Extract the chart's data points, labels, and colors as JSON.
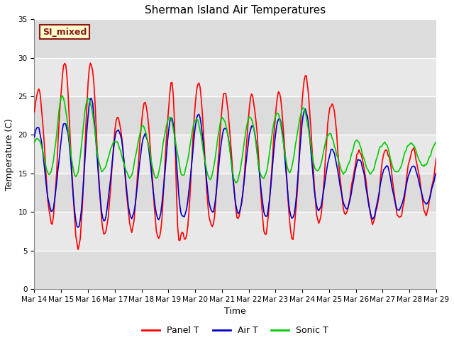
{
  "title": "Sherman Island Air Temperatures",
  "xlabel": "Time",
  "ylabel": "Temperature (C)",
  "ylim": [
    0,
    35
  ],
  "yticks": [
    0,
    5,
    10,
    15,
    20,
    25,
    30,
    35
  ],
  "xtick_labels": [
    "Mar 14",
    "Mar 15",
    "Mar 16",
    "Mar 17",
    "Mar 18",
    "Mar 19",
    "Mar 20",
    "Mar 21",
    "Mar 22",
    "Mar 23",
    "Mar 24",
    "Mar 25",
    "Mar 26",
    "Mar 27",
    "Mar 28",
    "Mar 29"
  ],
  "legend_labels": [
    "Panel T",
    "Air T",
    "Sonic T"
  ],
  "label_box_text": "SI_mixed",
  "label_box_facecolor": "#ffffcc",
  "label_box_edgecolor": "#8B1A1A",
  "label_box_textcolor": "#8B1A1A",
  "plot_bg_color": "#e8e8e8",
  "band_color_light": "#dcdcdc",
  "band_color_dark": "#e8e8e8",
  "grid_color": "white",
  "panel_color": "#ff0000",
  "air_color": "#0000cc",
  "sonic_color": "#00cc00",
  "line_width": 1.2,
  "title_fontsize": 11,
  "axis_fontsize": 9,
  "tick_fontsize": 7.5
}
